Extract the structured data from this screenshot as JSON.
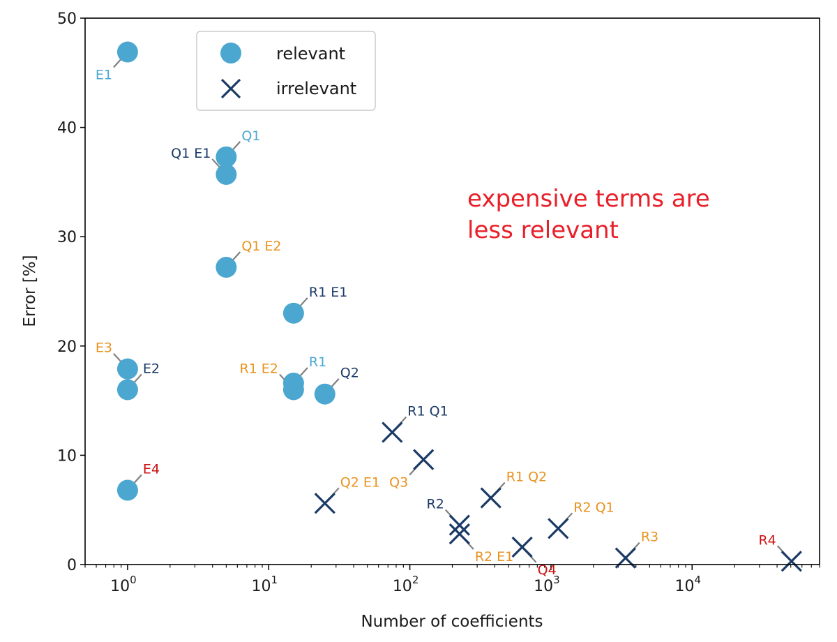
{
  "colors": {
    "relevant": "#4BA7D0",
    "irrelevant": "#1B3A66",
    "orange": "#E8921E",
    "red": "#CC1111",
    "annotation": "#E8202A",
    "leader": "#808080"
  },
  "chart_data": {
    "type": "scatter",
    "xscale": "log",
    "xlabel": "Number of coefficients",
    "ylabel": "Error [%]",
    "xlim": [
      0.5,
      80000
    ],
    "ylim": [
      0,
      50
    ],
    "yticks": [
      0,
      10,
      20,
      30,
      40,
      50
    ],
    "xticks": [
      {
        "value": 1,
        "base": "10",
        "exp": "0"
      },
      {
        "value": 10,
        "base": "10",
        "exp": "1"
      },
      {
        "value": 100,
        "base": "10",
        "exp": "2"
      },
      {
        "value": 1000,
        "base": "10",
        "exp": "3"
      },
      {
        "value": 10000,
        "base": "10",
        "exp": "4"
      }
    ],
    "legend": {
      "position": "upper-left",
      "entries": [
        {
          "label": "relevant",
          "marker": "circle",
          "series": "relevant"
        },
        {
          "label": "irrelevant",
          "marker": "x",
          "series": "irrelevant"
        }
      ]
    },
    "annotation": {
      "lines": [
        "expensive terms are",
        "less relevant"
      ],
      "x": 300,
      "y": 33
    },
    "points": [
      {
        "label": "E1",
        "x": 1,
        "y": 46.9,
        "series": "relevant",
        "label_color": "relevant",
        "dir": "ll"
      },
      {
        "label": "Q1",
        "x": 5,
        "y": 37.3,
        "series": "relevant",
        "label_color": "relevant",
        "dir": "ur"
      },
      {
        "label": "Q1 E1",
        "x": 5,
        "y": 35.7,
        "series": "relevant",
        "label_color": "irrelevant",
        "dir": "ul"
      },
      {
        "label": "Q1 E2",
        "x": 5,
        "y": 27.2,
        "series": "relevant",
        "label_color": "orange",
        "dir": "ur"
      },
      {
        "label": "R1 E1",
        "x": 15,
        "y": 23.0,
        "series": "relevant",
        "label_color": "irrelevant",
        "dir": "ur"
      },
      {
        "label": "E3",
        "x": 1,
        "y": 17.9,
        "series": "relevant",
        "label_color": "orange",
        "dir": "ul"
      },
      {
        "label": "E2",
        "x": 1,
        "y": 16.0,
        "series": "relevant",
        "label_color": "irrelevant",
        "dir": "ur"
      },
      {
        "label": "R1",
        "x": 15,
        "y": 16.6,
        "series": "relevant",
        "label_color": "relevant",
        "dir": "ur"
      },
      {
        "label": "R1 E2",
        "x": 15,
        "y": 16.0,
        "series": "relevant",
        "label_color": "orange",
        "dir": "ul"
      },
      {
        "label": "Q2",
        "x": 25,
        "y": 15.6,
        "series": "relevant",
        "label_color": "irrelevant",
        "dir": "ur"
      },
      {
        "label": "E4",
        "x": 1,
        "y": 6.8,
        "series": "relevant",
        "label_color": "red",
        "dir": "ur"
      },
      {
        "label": "R1 Q1",
        "x": 75,
        "y": 12.1,
        "series": "irrelevant",
        "label_color": "irrelevant",
        "dir": "ur"
      },
      {
        "label": "Q3",
        "x": 125,
        "y": 9.6,
        "series": "irrelevant",
        "label_color": "orange",
        "dir": "ll"
      },
      {
        "label": "Q2 E1",
        "x": 25,
        "y": 5.6,
        "series": "irrelevant",
        "label_color": "orange",
        "dir": "ur"
      },
      {
        "label": "R1 Q2",
        "x": 375,
        "y": 6.1,
        "series": "irrelevant",
        "label_color": "orange",
        "dir": "ur"
      },
      {
        "label": "R2",
        "x": 225,
        "y": 3.6,
        "series": "irrelevant",
        "label_color": "irrelevant",
        "dir": "ul"
      },
      {
        "label": "R2 E1",
        "x": 225,
        "y": 2.8,
        "series": "irrelevant",
        "label_color": "orange",
        "dir": "lr"
      },
      {
        "label": "R2 Q1",
        "x": 1125,
        "y": 3.3,
        "series": "irrelevant",
        "label_color": "orange",
        "dir": "ur"
      },
      {
        "label": "Q4",
        "x": 625,
        "y": 1.6,
        "series": "irrelevant",
        "label_color": "red",
        "dir": "lr"
      },
      {
        "label": "R3",
        "x": 3375,
        "y": 0.6,
        "series": "irrelevant",
        "label_color": "orange",
        "dir": "ur"
      },
      {
        "label": "R4",
        "x": 50625,
        "y": 0.3,
        "series": "irrelevant",
        "label_color": "red",
        "dir": "ul"
      }
    ]
  }
}
